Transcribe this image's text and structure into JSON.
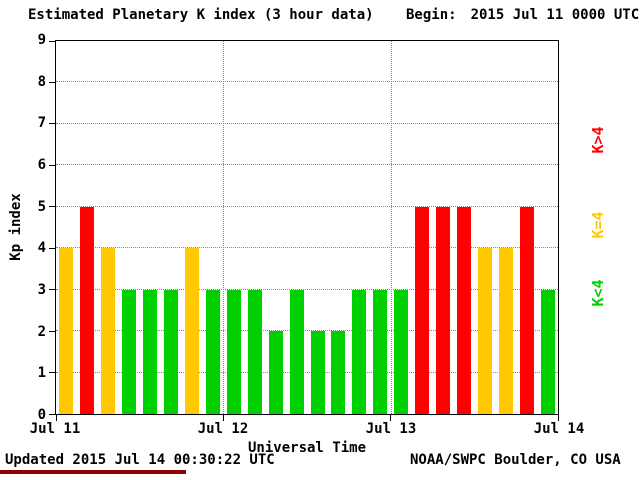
{
  "header": {
    "title": "Estimated Planetary K index (3 hour data)",
    "begin_label": "Begin:",
    "begin_value": "2015 Jul 11 0000 UTC"
  },
  "axes": {
    "y_title": "Kp index",
    "x_title": "Universal Time",
    "y_ticks": [
      "0",
      "1",
      "2",
      "3",
      "4",
      "5",
      "6",
      "7",
      "8",
      "9"
    ],
    "x_ticks": [
      "Jul 11",
      "Jul 12",
      "Jul 13",
      "Jul 14"
    ]
  },
  "legend": {
    "items": [
      {
        "label": "K>4",
        "color": "#ff0000"
      },
      {
        "label": "K=4",
        "color": "#ffc800"
      },
      {
        "label": "K<4",
        "color": "#00d000"
      }
    ]
  },
  "footer": {
    "updated": "Updated 2015 Jul 14 00:30:22 UTC",
    "credit": "NOAA/SWPC Boulder, CO USA"
  },
  "chart_data": {
    "type": "bar",
    "title": "Estimated Planetary K index (3 hour data)",
    "xlabel": "Universal Time",
    "ylabel": "Kp index",
    "ylim": [
      0,
      9
    ],
    "bin_hours": 3,
    "x_tick_labels": [
      "Jul 11",
      "Jul 12",
      "Jul 13",
      "Jul 14"
    ],
    "grid": "dotted",
    "legend_position": "right",
    "values": [
      4,
      5,
      4,
      3,
      3,
      3,
      4,
      3,
      3,
      3,
      2,
      3,
      2,
      2,
      3,
      3,
      3,
      5,
      5,
      5,
      4,
      4,
      5,
      3
    ],
    "colors": {
      "gt4": "#ff0000",
      "eq4": "#ffc800",
      "lt4": "#00d000"
    },
    "color_rule": "green K<4, yellow K=4, red K>4"
  }
}
